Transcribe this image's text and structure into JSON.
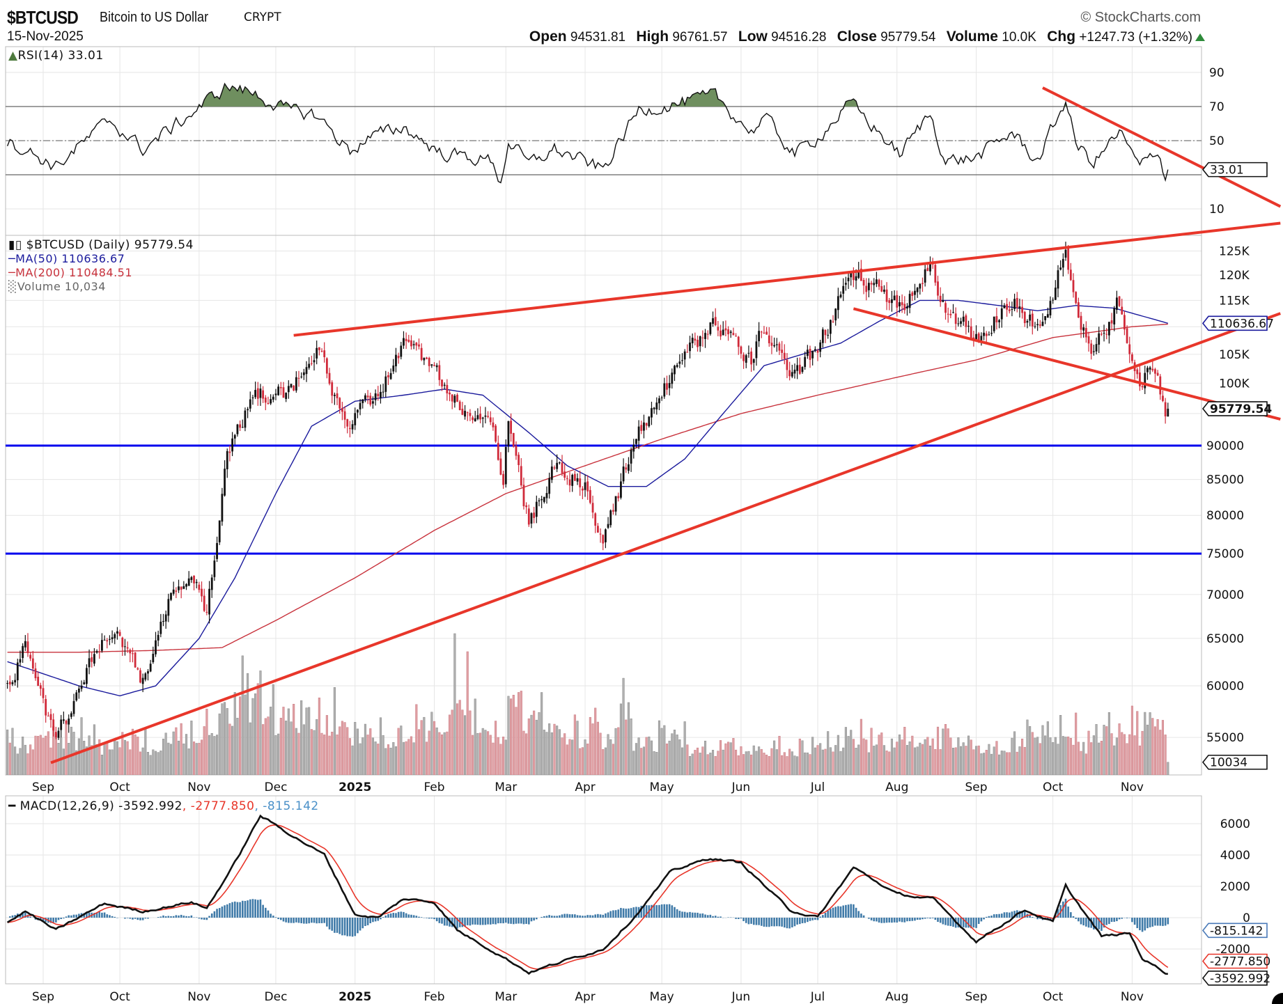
{
  "header": {
    "symbol": "$BTCUSD",
    "name": "Bitcoin to US Dollar",
    "exchange": "CRYPT",
    "copyright": "© StockCharts.com",
    "date": "15-Nov-2025",
    "open_label": "Open",
    "open": "94531.81",
    "high_label": "High",
    "high": "96761.57",
    "low_label": "Low",
    "low": "94516.28",
    "close_label": "Close",
    "close": "95779.54",
    "volume_label": "Volume",
    "volume": "10.0K",
    "chg_label": "Chg",
    "chg": "+1247.73 (+1.32%)"
  },
  "legends": {
    "rsi": "RSI(14) 33.01",
    "price": "$BTCUSD (Daily) 95779.54",
    "ma50": "MA(50) 110636.67",
    "ma200": "MA(200) 110484.51",
    "volume": "Volume 10,034",
    "macd": "MACD(12,26,9) -3592.992",
    "macd_signal": ", -2777.850",
    "macd_hist": ", -815.142"
  },
  "axis_boxes": {
    "rsi": "33.01",
    "ma50": "110636.67",
    "close": "95779.54",
    "volume": "10034",
    "macd_hist": "-815.142",
    "macd_signal": "-2777.850",
    "macd": "-3592.992"
  },
  "colors": {
    "up": "#111111",
    "down": "#d02a3a",
    "ma50": "#1a1a9c",
    "ma200": "#c8323c",
    "trend": "#e8362a",
    "support": "#0000ee",
    "rsi_fill": "#6f8f5f",
    "hist": "#3f7aa8",
    "signal": "#e8362a",
    "vol_up": "#b0b0b0",
    "vol_down": "#e0a0a4"
  },
  "chart_data": {
    "type": "candlestick",
    "title": "$BTCUSD Bitcoin to US Dollar CRYPT",
    "scale": "log",
    "last_bar": {
      "date": "2025-11-15",
      "open": 94531.81,
      "high": 96761.57,
      "low": 94516.28,
      "close": 95779.54,
      "volume": 10034
    },
    "price_close_keypoints": [
      [
        "2024-08-18",
        60000
      ],
      [
        "2024-08-25",
        64200
      ],
      [
        "2024-09-06",
        54500
      ],
      [
        "2024-09-15",
        59500
      ],
      [
        "2024-09-27",
        66000
      ],
      [
        "2024-10-10",
        60500
      ],
      [
        "2024-10-20",
        68500
      ],
      [
        "2024-10-29",
        72500
      ],
      [
        "2024-11-04",
        68000
      ],
      [
        "2024-11-12",
        88000
      ],
      [
        "2024-11-22",
        99000
      ],
      [
        "2024-12-05",
        98000
      ],
      [
        "2024-12-17",
        106000
      ],
      [
        "2024-12-30",
        92500
      ],
      [
        "2025-01-07",
        97000
      ],
      [
        "2025-01-20",
        106000
      ],
      [
        "2025-01-31",
        102000
      ],
      [
        "2025-02-10",
        97000
      ],
      [
        "2025-02-24",
        91500
      ],
      [
        "2025-02-28",
        84000
      ],
      [
        "2025-03-02",
        94000
      ],
      [
        "2025-03-10",
        79000
      ],
      [
        "2025-03-20",
        86000
      ],
      [
        "2025-04-01",
        85000
      ],
      [
        "2025-04-08",
        76500
      ],
      [
        "2025-04-22",
        93000
      ],
      [
        "2025-05-10",
        104000
      ],
      [
        "2025-05-22",
        111000
      ],
      [
        "2025-06-05",
        104000
      ],
      [
        "2025-06-10",
        110000
      ],
      [
        "2025-06-22",
        100500
      ],
      [
        "2025-07-01",
        106000
      ],
      [
        "2025-07-10",
        116000
      ],
      [
        "2025-07-14",
        121500
      ],
      [
        "2025-08-02",
        113000
      ],
      [
        "2025-08-14",
        123000
      ],
      [
        "2025-08-20",
        113000
      ],
      [
        "2025-09-01",
        108500
      ],
      [
        "2025-09-15",
        115500
      ],
      [
        "2025-09-25",
        109500
      ],
      [
        "2025-10-06",
        124000
      ],
      [
        "2025-10-10",
        113000
      ],
      [
        "2025-10-17",
        106500
      ],
      [
        "2025-10-27",
        114500
      ],
      [
        "2025-11-04",
        101000
      ],
      [
        "2025-11-11",
        103000
      ],
      [
        "2025-11-14",
        94500
      ],
      [
        "2025-11-15",
        95779.54
      ]
    ],
    "ma50_keypoints": [
      [
        "2024-08-18",
        62500
      ],
      [
        "2024-09-15",
        60000
      ],
      [
        "2024-10-01",
        59000
      ],
      [
        "2024-10-15",
        60000
      ],
      [
        "2024-11-01",
        65000
      ],
      [
        "2024-11-15",
        72000
      ],
      [
        "2024-12-01",
        83000
      ],
      [
        "2024-12-15",
        93000
      ],
      [
        "2025-01-01",
        97000
      ],
      [
        "2025-01-20",
        98000
      ],
      [
        "2025-02-05",
        99000
      ],
      [
        "2025-02-20",
        98000
      ],
      [
        "2025-03-10",
        92000
      ],
      [
        "2025-03-25",
        87000
      ],
      [
        "2025-04-10",
        84000
      ],
      [
        "2025-04-25",
        84000
      ],
      [
        "2025-05-10",
        88000
      ],
      [
        "2025-05-25",
        95000
      ],
      [
        "2025-06-10",
        103000
      ],
      [
        "2025-06-25",
        105000
      ],
      [
        "2025-07-10",
        107000
      ],
      [
        "2025-07-25",
        111000
      ],
      [
        "2025-08-10",
        115000
      ],
      [
        "2025-08-25",
        115000
      ],
      [
        "2025-09-10",
        114000
      ],
      [
        "2025-09-25",
        113000
      ],
      [
        "2025-10-10",
        114000
      ],
      [
        "2025-10-25",
        113500
      ],
      [
        "2025-11-15",
        110636.67
      ]
    ],
    "ma200_keypoints": [
      [
        "2024-08-18",
        63500
      ],
      [
        "2024-09-15",
        63500
      ],
      [
        "2024-10-15",
        63700
      ],
      [
        "2024-11-10",
        64000
      ],
      [
        "2024-12-01",
        67000
      ],
      [
        "2025-01-01",
        72000
      ],
      [
        "2025-02-01",
        78000
      ],
      [
        "2025-03-01",
        83000
      ],
      [
        "2025-04-01",
        87000
      ],
      [
        "2025-05-01",
        91000
      ],
      [
        "2025-06-01",
        95000
      ],
      [
        "2025-07-01",
        98000
      ],
      [
        "2025-08-01",
        101000
      ],
      [
        "2025-09-01",
        104000
      ],
      [
        "2025-10-01",
        108000
      ],
      [
        "2025-11-01",
        110000
      ],
      [
        "2025-11-15",
        110484.51
      ]
    ],
    "volume_weekly_thousands": [
      40,
      45,
      55,
      50,
      45,
      40,
      42,
      45,
      40,
      55,
      50,
      60,
      70,
      110,
      100,
      80,
      90,
      85,
      70,
      60,
      50,
      55,
      60,
      70,
      65,
      120,
      65,
      60,
      80,
      75,
      70,
      60,
      55,
      50,
      75,
      45,
      45,
      50,
      40,
      35,
      40,
      35,
      35,
      40,
      35,
      40,
      45,
      55,
      45,
      40,
      50,
      45,
      40,
      45,
      35,
      30,
      40,
      60,
      60,
      55,
      45,
      60,
      65,
      60,
      62
    ],
    "rsi_keypoints": [
      [
        "2024-08-18",
        50
      ],
      [
        "2024-09-06",
        35
      ],
      [
        "2024-09-27",
        62
      ],
      [
        "2024-10-10",
        45
      ],
      [
        "2024-10-29",
        66
      ],
      [
        "2024-11-12",
        82
      ],
      [
        "2024-11-22",
        78
      ],
      [
        "2024-12-05",
        68
      ],
      [
        "2024-12-17",
        65
      ],
      [
        "2024-12-30",
        44
      ],
      [
        "2025-01-07",
        52
      ],
      [
        "2025-01-20",
        58
      ],
      [
        "2025-02-03",
        43
      ],
      [
        "2025-02-24",
        38
      ],
      [
        "2025-02-27",
        25
      ],
      [
        "2025-03-02",
        50
      ],
      [
        "2025-03-10",
        36
      ],
      [
        "2025-03-20",
        45
      ],
      [
        "2025-04-08",
        33
      ],
      [
        "2025-04-22",
        68
      ],
      [
        "2025-05-01",
        70
      ],
      [
        "2025-05-22",
        76
      ],
      [
        "2025-06-05",
        55
      ],
      [
        "2025-06-10",
        64
      ],
      [
        "2025-06-22",
        42
      ],
      [
        "2025-07-01",
        52
      ],
      [
        "2025-07-14",
        72
      ],
      [
        "2025-08-02",
        42
      ],
      [
        "2025-08-14",
        66
      ],
      [
        "2025-08-20",
        38
      ],
      [
        "2025-09-01",
        40
      ],
      [
        "2025-09-15",
        55
      ],
      [
        "2025-09-25",
        38
      ],
      [
        "2025-10-06",
        74
      ],
      [
        "2025-10-10",
        48
      ],
      [
        "2025-10-17",
        37
      ],
      [
        "2025-10-27",
        55
      ],
      [
        "2025-11-04",
        34
      ],
      [
        "2025-11-11",
        45
      ],
      [
        "2025-11-14",
        30
      ],
      [
        "2025-11-15",
        33.01
      ]
    ],
    "macd_keypoints": [
      [
        "2024-08-18",
        -300
      ],
      [
        "2024-08-25",
        400
      ],
      [
        "2024-09-06",
        -800
      ],
      [
        "2024-09-25",
        900
      ],
      [
        "2024-10-10",
        400
      ],
      [
        "2024-10-29",
        1000
      ],
      [
        "2024-11-04",
        600
      ],
      [
        "2024-11-15",
        3500
      ],
      [
        "2024-11-25",
        6500
      ],
      [
        "2024-12-10",
        5000
      ],
      [
        "2024-12-20",
        4000
      ],
      [
        "2025-01-01",
        200
      ],
      [
        "2025-01-10",
        0
      ],
      [
        "2025-01-20",
        1200
      ],
      [
        "2025-02-01",
        1000
      ],
      [
        "2025-02-10",
        -800
      ],
      [
        "2025-02-28",
        -2500
      ],
      [
        "2025-03-10",
        -3500
      ],
      [
        "2025-03-25",
        -2700
      ],
      [
        "2025-04-08",
        -2000
      ],
      [
        "2025-04-20",
        0
      ],
      [
        "2025-05-05",
        3000
      ],
      [
        "2025-05-20",
        3800
      ],
      [
        "2025-06-01",
        3500
      ],
      [
        "2025-06-20",
        500
      ],
      [
        "2025-07-01",
        0
      ],
      [
        "2025-07-15",
        3200
      ],
      [
        "2025-08-01",
        1500
      ],
      [
        "2025-08-15",
        1200
      ],
      [
        "2025-09-01",
        -1500
      ],
      [
        "2025-09-20",
        500
      ],
      [
        "2025-10-01",
        -300
      ],
      [
        "2025-10-06",
        2000
      ],
      [
        "2025-10-20",
        -1200
      ],
      [
        "2025-10-31",
        -1000
      ],
      [
        "2025-11-05",
        -2600
      ],
      [
        "2025-11-15",
        -3592.992
      ]
    ],
    "support_lines": [
      90000,
      75000
    ],
    "price_trendlines": [
      [
        [
          "2024-12-08",
          108400
        ],
        [
          "2025-12-29",
          131000
        ]
      ],
      [
        [
          "2024-09-04",
          52700
        ],
        [
          "2025-12-29",
          112500
        ]
      ],
      [
        [
          "2025-07-15",
          113400
        ],
        [
          "2025-12-29",
          94100
        ]
      ]
    ],
    "rsi_trendline": [
      [
        "2025-09-27",
        81
      ],
      [
        "2025-12-29",
        11.4
      ]
    ],
    "rsi_axis": {
      "range": [
        0,
        100
      ],
      "ticks": [
        "90",
        "70",
        "50",
        "10"
      ],
      "tick_values": [
        90,
        70,
        50,
        10
      ],
      "levels": [
        70,
        50,
        30
      ]
    },
    "price_axis": {
      "ticks": [
        "125K",
        "120K",
        "115K",
        "105K",
        "100K",
        "90000",
        "85000",
        "80000",
        "75000",
        "70000",
        "65000",
        "60000",
        "55000"
      ],
      "tick_values": [
        125000,
        120000,
        115000,
        105000,
        100000,
        90000,
        85000,
        80000,
        75000,
        70000,
        65000,
        60000,
        55000
      ]
    },
    "macd_axis": {
      "ticks": [
        "6000",
        "4000",
        "2000",
        "0",
        "-2000"
      ],
      "tick_values": [
        6000,
        4000,
        2000,
        0,
        -2000
      ]
    },
    "x_axis": {
      "labels": [
        "Sep",
        "Oct",
        "Nov",
        "Dec",
        "2025",
        "Feb",
        "Mar",
        "Apr",
        "May",
        "Jun",
        "Jul",
        "Aug",
        "Sep",
        "Oct",
        "Nov"
      ],
      "dates": [
        "2024-09-01",
        "2024-10-01",
        "2024-11-01",
        "2024-12-01",
        "2025-01-01",
        "2025-02-01",
        "2025-03-01",
        "2025-04-01",
        "2025-05-01",
        "2025-06-01",
        "2025-07-01",
        "2025-08-01",
        "2025-09-01",
        "2025-10-01",
        "2025-11-01"
      ]
    }
  }
}
